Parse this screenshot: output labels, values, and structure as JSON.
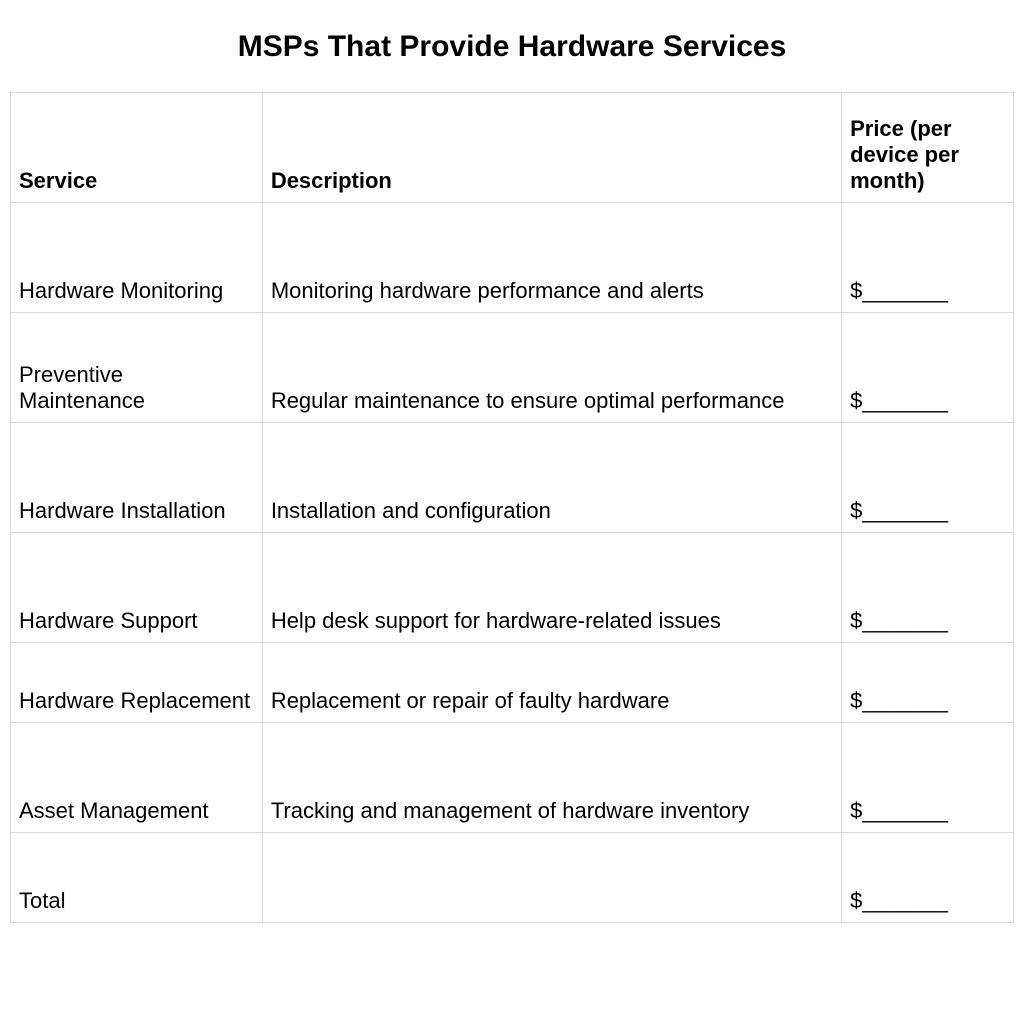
{
  "title": "MSPs That Provide Hardware Services",
  "table": {
    "headers": {
      "service": "Service",
      "description": "Description",
      "price": "Price (per device per month)"
    },
    "rows": [
      {
        "service": "Hardware Monitoring",
        "description": "Monitoring hardware performance and alerts",
        "price": "$_______"
      },
      {
        "service": "Preventive Maintenance",
        "description": "Regular maintenance to ensure optimal performance",
        "price": "$_______"
      },
      {
        "service": "Hardware Installation",
        "description": "Installation and configuration",
        "price": "$_______"
      },
      {
        "service": "Hardware Support",
        "description": "Help desk support for hardware-related issues",
        "price": "$_______"
      },
      {
        "service": "Hardware Replacement",
        "description": "Replacement or repair of faulty hardware",
        "price": "$_______"
      },
      {
        "service": "Asset Management",
        "description": "Tracking and management of hardware inventory",
        "price": "$_______"
      }
    ],
    "total": {
      "label": "Total",
      "description": "",
      "price": "$_______"
    }
  },
  "style": {
    "background_color": "#ffffff",
    "text_color": "#000000",
    "border_color": "#d9d9d9",
    "title_fontsize": 30,
    "cell_fontsize": 22,
    "font_family": "Arial, Helvetica, sans-serif"
  }
}
